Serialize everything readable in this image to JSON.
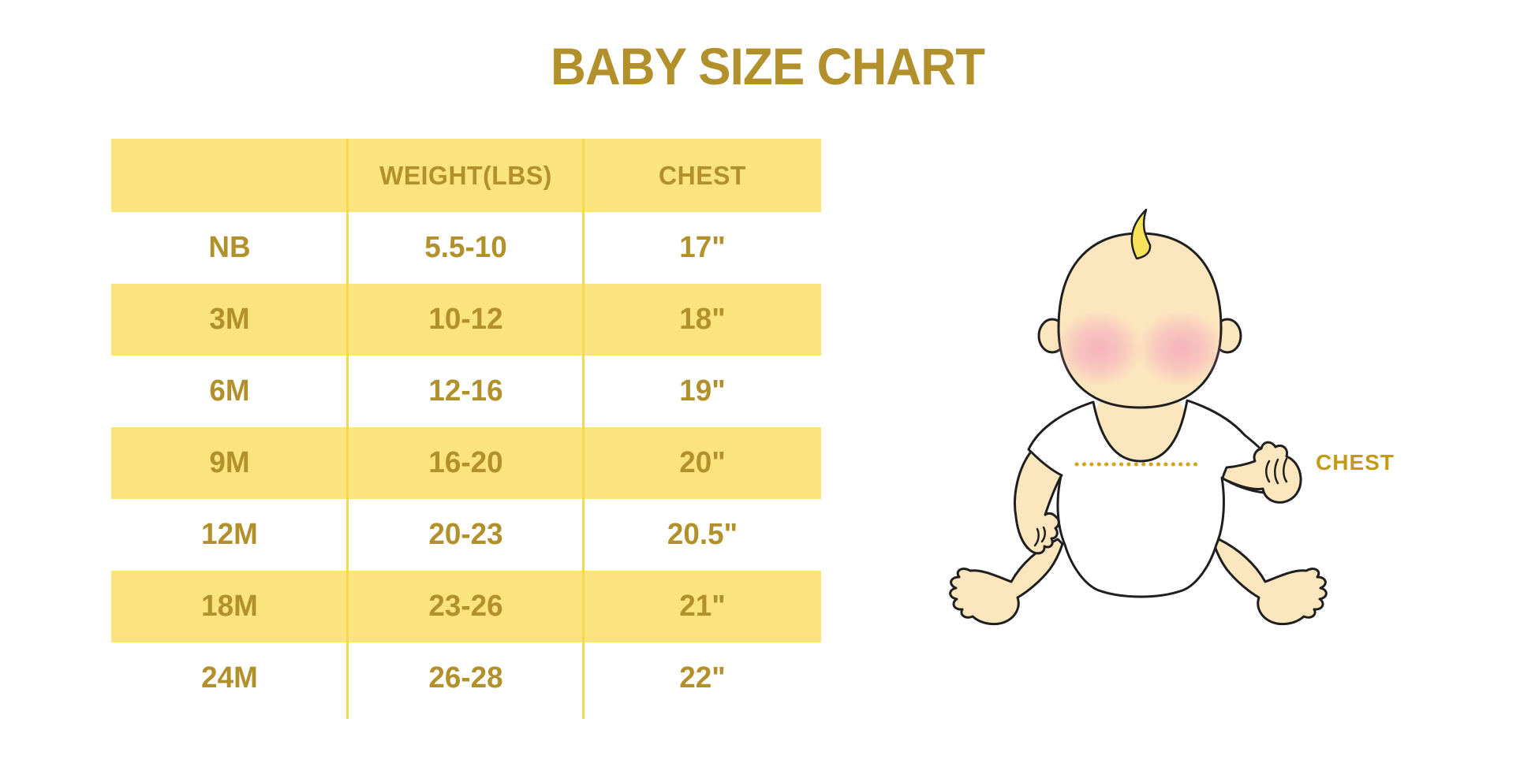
{
  "title": "BABY SIZE CHART",
  "table": {
    "headers": [
      "",
      "WEIGHT(LBS)",
      "CHEST"
    ],
    "rows": [
      [
        "NB",
        "5.5-10",
        "17\""
      ],
      [
        "3M",
        "10-12",
        "18\""
      ],
      [
        "6M",
        "12-16",
        "19\""
      ],
      [
        "9M",
        "16-20",
        "20\""
      ],
      [
        "12M",
        "20-23",
        "20.5\""
      ],
      [
        "18M",
        "23-26",
        "21\""
      ],
      [
        "24M",
        "26-28",
        "22\""
      ]
    ]
  },
  "figure": {
    "label": "CHEST",
    "description_icon": "baby-illustration"
  },
  "colors": {
    "accent_gold": "#B2912C",
    "table_yellow": "#FBE37D",
    "divider_yellow": "#F6D84F",
    "label_gold": "#C49A15",
    "skin": "#FCE6BE",
    "blush": "#F4A9BD",
    "hair": "#F6E35B",
    "outline": "#1F1F1F",
    "onesie": "#FFFFFF",
    "dot_line": "#D2A41C"
  },
  "chart_data": {
    "type": "table",
    "title": "BABY SIZE CHART",
    "columns": [
      "",
      "WEIGHT(LBS)",
      "CHEST"
    ],
    "rows": [
      [
        "NB",
        "5.5-10",
        "17\""
      ],
      [
        "3M",
        "10-12",
        "18\""
      ],
      [
        "6M",
        "12-16",
        "19\""
      ],
      [
        "9M",
        "16-20",
        "20\""
      ],
      [
        "12M",
        "20-23",
        "20.5\""
      ],
      [
        "18M",
        "23-26",
        "21\""
      ],
      [
        "24M",
        "26-28",
        "22\""
      ]
    ],
    "annotations": [
      "CHEST measurement line on baby illustration"
    ],
    "layout": "table left, baby illustration right, zebra yellow rows"
  }
}
